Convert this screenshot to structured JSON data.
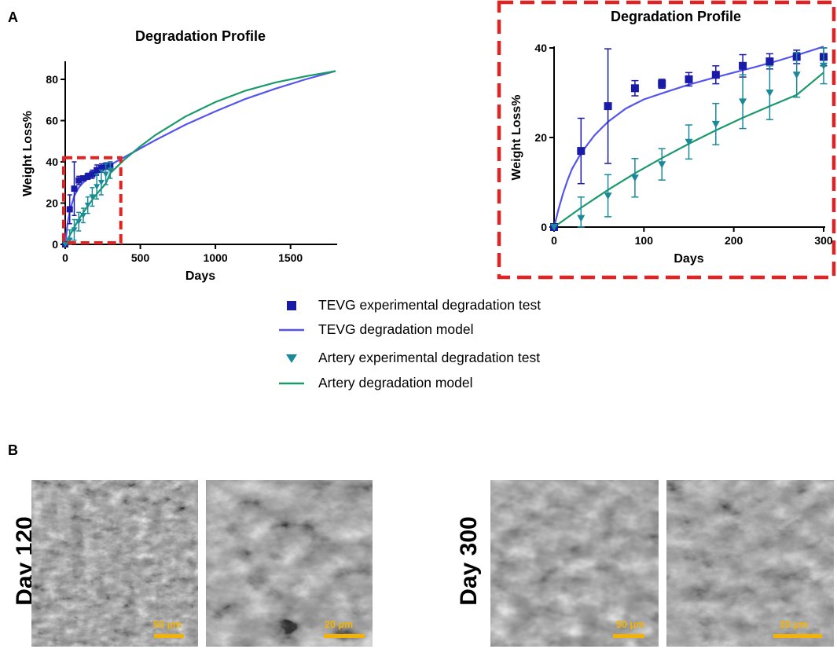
{
  "panel_labels": {
    "a": "A",
    "b": "B"
  },
  "colors": {
    "tevg_marker": "#1a1aa8",
    "tevg_model": "#5555ee",
    "artery_marker": "#1a8a9a",
    "artery_model": "#1a9a6a",
    "highlight_box": "#e52222",
    "scale_bar": "#f3b300"
  },
  "legend": [
    {
      "label": "TEVG experimental degradation test",
      "symbol": "square"
    },
    {
      "label": "TEVG degradation model",
      "symbol": "line-blue"
    },
    {
      "label": "Artery experimental degradation test",
      "symbol": "triangle"
    },
    {
      "label": "Artery degradation model",
      "symbol": "line-green"
    }
  ],
  "chart_data": [
    {
      "type": "line",
      "title": "Degradation Profile",
      "xlabel": "Days",
      "ylabel": "Weight Loss%",
      "xlim": [
        0,
        1800
      ],
      "ylim": [
        0,
        88
      ],
      "xticks": [
        0,
        500,
        1000,
        1500
      ],
      "yticks": [
        0,
        20,
        40,
        60,
        80
      ],
      "highlight_region": {
        "x": [
          0,
          370
        ],
        "y": [
          0,
          42
        ]
      },
      "series": [
        {
          "name": "TEVG experimental degradation test",
          "kind": "scatter",
          "marker": "square",
          "x": [
            0,
            30,
            60,
            90,
            120,
            150,
            180,
            210,
            240,
            270,
            300
          ],
          "y": [
            0,
            17,
            27,
            31,
            32,
            33,
            34,
            36,
            37,
            38,
            38
          ],
          "err": [
            0,
            7,
            13,
            2,
            1,
            1.5,
            2,
            2.5,
            2,
            1.5,
            2
          ]
        },
        {
          "name": "TEVG degradation model",
          "kind": "line",
          "x": [
            0,
            15,
            30,
            60,
            90,
            120,
            150,
            200,
            250,
            300,
            400,
            500,
            600,
            800,
            1000,
            1200,
            1400,
            1600,
            1800
          ],
          "y": [
            0,
            10,
            16,
            23.5,
            27.5,
            30,
            31.8,
            34.2,
            36.4,
            38.5,
            42.5,
            46.5,
            50.5,
            58,
            64.5,
            70.5,
            75.5,
            80,
            84
          ]
        },
        {
          "name": "Artery experimental degradation test",
          "kind": "scatter",
          "marker": "triangle",
          "x": [
            0,
            30,
            60,
            90,
            120,
            150,
            180,
            210,
            240,
            270,
            300
          ],
          "y": [
            0,
            2,
            7,
            11,
            14,
            19,
            23,
            28,
            30,
            34,
            36
          ],
          "err": [
            0,
            5,
            5,
            4.5,
            3.5,
            4,
            4.5,
            6,
            6,
            5,
            4
          ]
        },
        {
          "name": "Artery degradation model",
          "kind": "line",
          "x": [
            0,
            30,
            60,
            90,
            120,
            150,
            180,
            210,
            240,
            270,
            300,
            400,
            500,
            600,
            800,
            1000,
            1200,
            1400,
            1600,
            1800
          ],
          "y": [
            0,
            4.3,
            8.3,
            12,
            15.4,
            18.6,
            21.6,
            24.4,
            27,
            29.5,
            34.5,
            41.5,
            47.5,
            53,
            62,
            69,
            74.5,
            78.5,
            81.5,
            84
          ]
        }
      ]
    },
    {
      "type": "line",
      "title": "Degradation Profile",
      "xlabel": "Days",
      "ylabel": "Weight Loss%",
      "xlim": [
        0,
        300
      ],
      "ylim": [
        0,
        40
      ],
      "xticks": [
        0,
        100,
        200,
        300
      ],
      "yticks": [
        0,
        20,
        40
      ],
      "series": [
        {
          "name": "TEVG experimental degradation test",
          "kind": "scatter",
          "marker": "square",
          "x": [
            0,
            30,
            60,
            90,
            120,
            150,
            180,
            210,
            240,
            270,
            300
          ],
          "y": [
            0,
            17,
            27,
            31,
            32,
            33,
            34,
            36,
            37,
            38,
            38
          ],
          "err": [
            0,
            7.3,
            12.8,
            1.7,
            1.0,
            1.5,
            2.0,
            2.5,
            1.7,
            1.5,
            2.0
          ]
        },
        {
          "name": "TEVG degradation model",
          "kind": "line",
          "x": [
            0,
            5,
            10,
            15,
            20,
            30,
            45,
            60,
            80,
            100,
            125,
            150,
            175,
            200,
            225,
            250,
            275,
            300
          ],
          "y": [
            0,
            4,
            7.5,
            10.5,
            13,
            16.5,
            20.5,
            23.5,
            26.5,
            28.5,
            30.2,
            31.8,
            33.2,
            34.5,
            35.8,
            37.2,
            38.7,
            40.3
          ]
        },
        {
          "name": "Artery experimental degradation test",
          "kind": "scatter",
          "marker": "triangle",
          "x": [
            0,
            30,
            60,
            90,
            120,
            150,
            180,
            210,
            240,
            270,
            300
          ],
          "y": [
            0,
            2,
            7,
            11,
            14,
            19,
            23,
            28,
            30,
            34,
            36
          ],
          "err": [
            0,
            4.7,
            4.7,
            4.3,
            3.5,
            3.8,
            4.6,
            6.0,
            6.0,
            5.0,
            4.0
          ]
        },
        {
          "name": "Artery degradation model",
          "kind": "line",
          "x": [
            0,
            30,
            60,
            90,
            120,
            150,
            180,
            210,
            240,
            270,
            300
          ],
          "y": [
            0,
            4.3,
            8.3,
            12,
            15.4,
            18.6,
            21.6,
            24.4,
            27,
            29.5,
            34.5
          ]
        }
      ]
    }
  ],
  "micrographs": [
    {
      "day_label": "Day 120",
      "scale_left": "50 μm",
      "scale_right": "20 μm"
    },
    {
      "day_label": "Day 300",
      "scale_left": "50 μm",
      "scale_right": "20 μm"
    }
  ]
}
